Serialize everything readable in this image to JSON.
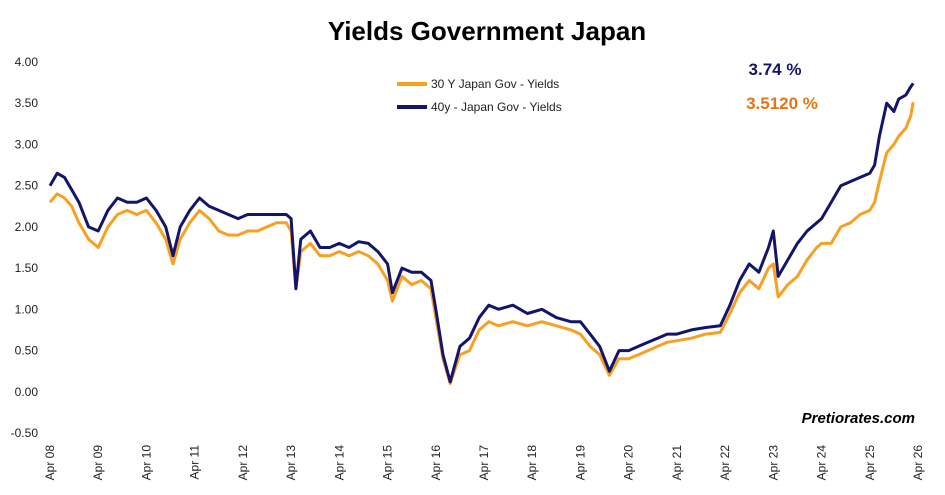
{
  "chart_data": {
    "type": "line",
    "title": "Yields Government Japan",
    "ylim": [
      -0.5,
      4.0
    ],
    "yticks": [
      "4.00",
      "3.50",
      "3.00",
      "2.50",
      "2.00",
      "1.50",
      "1.00",
      "0.50",
      "0.00",
      "-0.50"
    ],
    "ytick_values": [
      4.0,
      3.5,
      3.0,
      2.5,
      2.0,
      1.5,
      1.0,
      0.5,
      0.0,
      -0.5
    ],
    "xlim": [
      2008.0,
      2026.0
    ],
    "xticks": [
      "Apr 08",
      "Apr 09",
      "Apr 10",
      "Apr 11",
      "Apr 12",
      "Apr 13",
      "Apr 14",
      "Apr 15",
      "Apr 16",
      "Apr 17",
      "Apr 18",
      "Apr 19",
      "Apr 20",
      "Apr 21",
      "Apr 22",
      "Apr 23",
      "Apr 24",
      "Apr 25",
      "Apr 26"
    ],
    "grid": false,
    "legend_position": "top-center",
    "series": [
      {
        "name": "30 Y Japan Gov - Yields",
        "color": "#F7A021",
        "last_value_label": "3.5120 %",
        "label_color": "#E87511",
        "x": [
          2008.0,
          2008.15,
          2008.3,
          2008.45,
          2008.6,
          2008.8,
          2009.0,
          2009.2,
          2009.4,
          2009.6,
          2009.8,
          2010.0,
          2010.2,
          2010.4,
          2010.55,
          2010.7,
          2010.9,
          2011.1,
          2011.3,
          2011.5,
          2011.7,
          2011.9,
          2012.1,
          2012.3,
          2012.5,
          2012.7,
          2012.9,
          2013.0,
          2013.1,
          2013.2,
          2013.4,
          2013.6,
          2013.8,
          2014.0,
          2014.2,
          2014.4,
          2014.6,
          2014.8,
          2015.0,
          2015.1,
          2015.3,
          2015.5,
          2015.7,
          2015.9,
          2016.0,
          2016.15,
          2016.3,
          2016.5,
          2016.7,
          2016.9,
          2017.1,
          2017.3,
          2017.6,
          2017.9,
          2018.2,
          2018.5,
          2018.8,
          2019.0,
          2019.2,
          2019.4,
          2019.6,
          2019.8,
          2020.0,
          2020.2,
          2020.4,
          2020.6,
          2020.8,
          2021.0,
          2021.3,
          2021.6,
          2021.9,
          2022.1,
          2022.3,
          2022.5,
          2022.7,
          2022.9,
          2023.0,
          2023.1,
          2023.3,
          2023.5,
          2023.7,
          2023.9,
          2024.0,
          2024.2,
          2024.4,
          2024.6,
          2024.8,
          2025.0,
          2025.1,
          2025.2,
          2025.35,
          2025.5,
          2025.6,
          2025.75,
          2025.85,
          2025.9
        ],
        "values": [
          2.3,
          2.4,
          2.35,
          2.25,
          2.05,
          1.85,
          1.75,
          2.0,
          2.15,
          2.2,
          2.15,
          2.2,
          2.05,
          1.85,
          1.55,
          1.85,
          2.05,
          2.2,
          2.1,
          1.95,
          1.9,
          1.9,
          1.95,
          1.95,
          2.0,
          2.05,
          2.05,
          1.95,
          1.25,
          1.7,
          1.8,
          1.65,
          1.65,
          1.7,
          1.65,
          1.7,
          1.65,
          1.55,
          1.35,
          1.1,
          1.4,
          1.3,
          1.35,
          1.25,
          0.9,
          0.4,
          0.1,
          0.45,
          0.5,
          0.75,
          0.85,
          0.8,
          0.85,
          0.8,
          0.85,
          0.8,
          0.75,
          0.7,
          0.55,
          0.45,
          0.2,
          0.4,
          0.4,
          0.45,
          0.5,
          0.55,
          0.6,
          0.62,
          0.65,
          0.7,
          0.72,
          0.95,
          1.2,
          1.35,
          1.25,
          1.5,
          1.55,
          1.15,
          1.3,
          1.4,
          1.6,
          1.75,
          1.8,
          1.8,
          2.0,
          2.05,
          2.15,
          2.2,
          2.3,
          2.55,
          2.9,
          3.0,
          3.1,
          3.2,
          3.35,
          3.512
        ]
      },
      {
        "name": "40y - Japan Gov - Yields",
        "color": "#14146B",
        "last_value_label": "3.74 %",
        "label_color": "#14146B",
        "x": [
          2008.0,
          2008.15,
          2008.3,
          2008.45,
          2008.6,
          2008.8,
          2009.0,
          2009.2,
          2009.4,
          2009.6,
          2009.8,
          2010.0,
          2010.2,
          2010.4,
          2010.55,
          2010.7,
          2010.9,
          2011.1,
          2011.3,
          2011.5,
          2011.7,
          2011.9,
          2012.1,
          2012.3,
          2012.5,
          2012.7,
          2012.9,
          2013.0,
          2013.1,
          2013.2,
          2013.4,
          2013.6,
          2013.8,
          2014.0,
          2014.2,
          2014.4,
          2014.6,
          2014.8,
          2015.0,
          2015.1,
          2015.3,
          2015.5,
          2015.7,
          2015.9,
          2016.0,
          2016.15,
          2016.3,
          2016.5,
          2016.7,
          2016.9,
          2017.1,
          2017.3,
          2017.6,
          2017.9,
          2018.2,
          2018.5,
          2018.8,
          2019.0,
          2019.2,
          2019.4,
          2019.6,
          2019.8,
          2020.0,
          2020.2,
          2020.4,
          2020.6,
          2020.8,
          2021.0,
          2021.3,
          2021.6,
          2021.9,
          2022.1,
          2022.3,
          2022.5,
          2022.7,
          2022.9,
          2023.0,
          2023.1,
          2023.3,
          2023.5,
          2023.7,
          2023.9,
          2024.0,
          2024.2,
          2024.4,
          2024.6,
          2024.8,
          2025.0,
          2025.1,
          2025.2,
          2025.35,
          2025.5,
          2025.6,
          2025.75,
          2025.85,
          2025.9
        ],
        "values": [
          2.5,
          2.65,
          2.6,
          2.45,
          2.3,
          2.0,
          1.95,
          2.2,
          2.35,
          2.3,
          2.3,
          2.35,
          2.2,
          2.0,
          1.65,
          2.0,
          2.2,
          2.35,
          2.25,
          2.2,
          2.15,
          2.1,
          2.15,
          2.15,
          2.15,
          2.15,
          2.15,
          2.1,
          1.25,
          1.85,
          1.95,
          1.75,
          1.75,
          1.8,
          1.75,
          1.82,
          1.8,
          1.7,
          1.55,
          1.2,
          1.5,
          1.45,
          1.45,
          1.35,
          1.0,
          0.45,
          0.12,
          0.55,
          0.65,
          0.9,
          1.05,
          1.0,
          1.05,
          0.95,
          1.0,
          0.9,
          0.85,
          0.85,
          0.7,
          0.55,
          0.25,
          0.5,
          0.5,
          0.55,
          0.6,
          0.65,
          0.7,
          0.7,
          0.75,
          0.78,
          0.8,
          1.05,
          1.35,
          1.55,
          1.45,
          1.75,
          1.95,
          1.4,
          1.6,
          1.8,
          1.95,
          2.05,
          2.1,
          2.3,
          2.5,
          2.55,
          2.6,
          2.65,
          2.75,
          3.1,
          3.5,
          3.4,
          3.55,
          3.6,
          3.7,
          3.74
        ]
      }
    ]
  },
  "watermark": "Pretiorates.com"
}
